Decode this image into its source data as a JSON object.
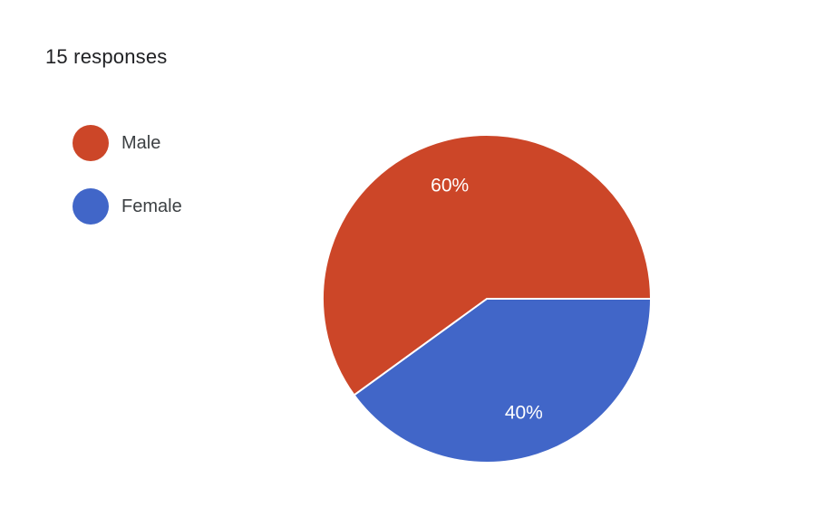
{
  "header": {
    "responses_label": "15 responses"
  },
  "chart_data": {
    "type": "pie",
    "categories": [
      "Male",
      "Female"
    ],
    "values": [
      60,
      40
    ],
    "slice_labels": [
      "60%",
      "40%"
    ],
    "colors": [
      "#cc4628",
      "#4166c8"
    ],
    "legend_position": "left"
  }
}
